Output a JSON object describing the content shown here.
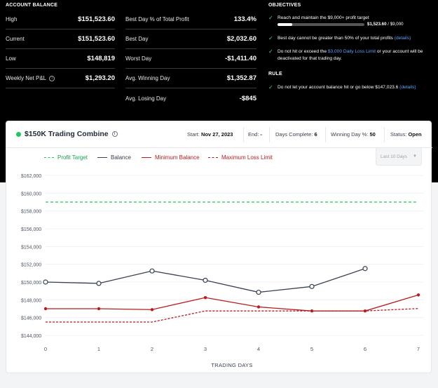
{
  "account_balance": {
    "title": "ACCOUNT BALANCE",
    "rows": [
      {
        "label": "High",
        "value": "$151,523.60"
      },
      {
        "label": "Current",
        "value": "$151,523.60"
      },
      {
        "label": "Low",
        "value": "$148,819"
      },
      {
        "label": "Weekly Net P&L",
        "value": "$1,293.20"
      }
    ]
  },
  "day_stats": {
    "rows": [
      {
        "label": "Best Day % of Total Profit",
        "value": "133.4%"
      },
      {
        "label": "Best Day",
        "value": "$2,032.60"
      },
      {
        "label": "Worst Day",
        "value": "-$1,411.40"
      },
      {
        "label": "Avg. Winning Day",
        "value": "$1,352.87"
      },
      {
        "label": "Avg. Losing Day",
        "value": "-$845"
      }
    ]
  },
  "objectives": {
    "title": "OBJECTIVES",
    "target_text": "Reach and maintain the $9,000+ profit target",
    "progress_value": "$1,523.60",
    "progress_goal": " / $9,000",
    "progress_fraction": 0.169,
    "best_day_text": "Best day cannot be greater than 50% of your total profits",
    "details_label": "(details)",
    "loss_pre": "Do not hit or exceed the",
    "loss_link": "$3,000 Daily Loss Limit",
    "loss_post": "or your account will be deactivated for that trading day."
  },
  "rule": {
    "title": "RULE",
    "text": "Do not let your account balance hit or go below $147,023.6",
    "details_label": "(details)"
  },
  "combine": {
    "title": "$150K Trading Combine",
    "start_label": "Start:",
    "start_value": "Nov 27, 2023",
    "end_label": "End:",
    "end_value": "-",
    "days_label": "Days Complete:",
    "days_value": "6",
    "winning_label": "Winning Day %:",
    "winning_value": "50",
    "status_label": "Status:",
    "status_value": "Open",
    "range_select": "Last 10 Days"
  },
  "colors": {
    "profit_target": "#22c55e",
    "balance": "#374151",
    "minimum_balance": "#b91c1c",
    "max_loss": "#b91c1c"
  },
  "chart_data": {
    "type": "line",
    "xlabel": "TRADING DAYS",
    "x": [
      0,
      1,
      2,
      3,
      4,
      5,
      6,
      7
    ],
    "ylim": [
      144000,
      162000
    ],
    "yticks": [
      "$144,000",
      "$146,000",
      "$148,000",
      "$150,000",
      "$152,000",
      "$154,000",
      "$156,000",
      "$158,000",
      "$160,000",
      "$162,000"
    ],
    "series": [
      {
        "name": "Profit Target",
        "values": [
          159000,
          159000,
          159000,
          159000,
          159000,
          159000,
          159000,
          159000
        ]
      },
      {
        "name": "Balance",
        "values": [
          150000,
          149850,
          151250,
          150200,
          148850,
          149500,
          151520,
          null
        ]
      },
      {
        "name": "Minimum Balance",
        "values": [
          147000,
          147000,
          146900,
          148250,
          147200,
          146750,
          146750,
          148550
        ]
      },
      {
        "name": "Maximum Loss Limit",
        "values": [
          145500,
          145500,
          145500,
          146750,
          146750,
          146750,
          146750,
          147020
        ]
      }
    ]
  }
}
